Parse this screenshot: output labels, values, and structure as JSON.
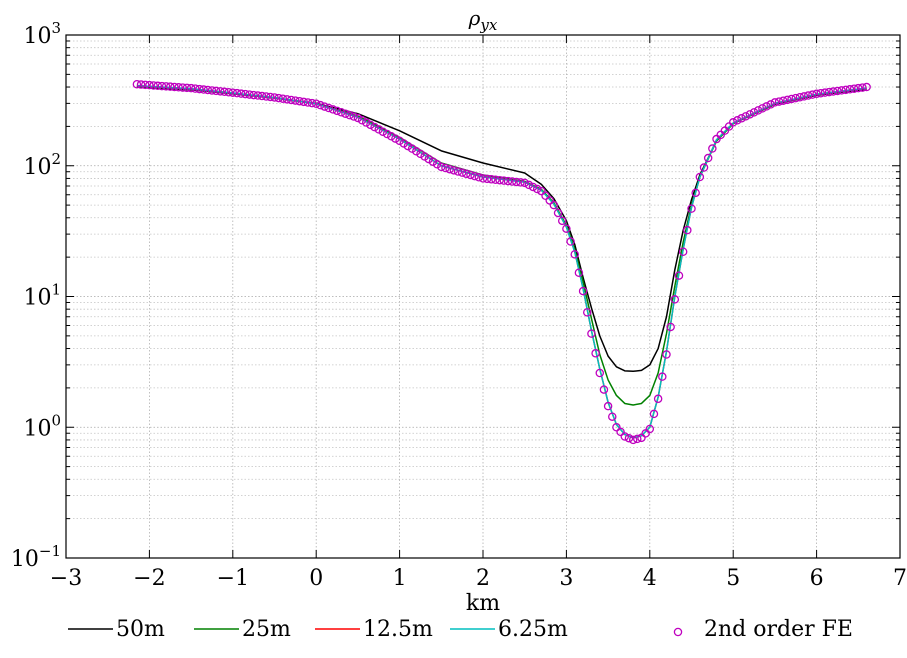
{
  "chart_data": {
    "type": "line",
    "title": "ρyx",
    "title_main": "ρ",
    "title_sub": "yx",
    "xlabel": "km",
    "ylabel": "",
    "xlim": [
      -3,
      7
    ],
    "ylim": [
      0.1,
      1000
    ],
    "yscale": "log",
    "grid": true,
    "legend_placement": "bottom",
    "x_ticks": [
      -3,
      -2,
      -1,
      0,
      1,
      2,
      3,
      4,
      5,
      6,
      7
    ],
    "x_tick_labels": [
      "−3",
      "−2",
      "−1",
      "0",
      "1",
      "2",
      "3",
      "4",
      "5",
      "6",
      "7"
    ],
    "y_ticks": [
      0.1,
      1,
      10,
      100,
      1000
    ],
    "y_tick_labels": [
      {
        "base": "10",
        "exp": "−1"
      },
      {
        "base": "10",
        "exp": "0"
      },
      {
        "base": "10",
        "exp": "1"
      },
      {
        "base": "10",
        "exp": "2"
      },
      {
        "base": "10",
        "exp": "3"
      }
    ],
    "x": [
      -2.15,
      -1.5,
      -1.0,
      -0.5,
      0.0,
      0.5,
      1.0,
      1.5,
      2.0,
      2.5,
      2.7,
      2.85,
      3.0,
      3.1,
      3.2,
      3.3,
      3.4,
      3.5,
      3.6,
      3.7,
      3.8,
      3.9,
      4.0,
      4.1,
      4.2,
      4.3,
      4.4,
      4.5,
      4.6,
      4.8,
      5.0,
      5.5,
      6.0,
      6.6
    ],
    "series": [
      {
        "name": "50m",
        "color": "#000000",
        "style": "line",
        "values": [
          400,
          380,
          355,
          330,
          300,
          250,
          185,
          130,
          105,
          88,
          72,
          56,
          38,
          25,
          14,
          8.2,
          5.0,
          3.5,
          2.9,
          2.7,
          2.68,
          2.72,
          3.0,
          4.0,
          7.0,
          16,
          32,
          55,
          85,
          155,
          210,
          295,
          345,
          385
        ]
      },
      {
        "name": "25m",
        "color": "#008000",
        "style": "line",
        "values": [
          405,
          385,
          357,
          330,
          298,
          240,
          165,
          105,
          85,
          76,
          66,
          52,
          35,
          23,
          13,
          6.8,
          3.6,
          2.3,
          1.75,
          1.52,
          1.48,
          1.52,
          1.75,
          2.6,
          5.2,
          12,
          26,
          50,
          82,
          155,
          210,
          298,
          350,
          390
        ]
      },
      {
        "name": "12.5m",
        "color": "#ff0000",
        "style": "line",
        "values": [
          410,
          388,
          360,
          332,
          298,
          235,
          160,
          100,
          82,
          75,
          65,
          51,
          34,
          22,
          11.5,
          5.5,
          2.8,
          1.55,
          1.05,
          0.88,
          0.83,
          0.86,
          1.0,
          1.7,
          3.8,
          10,
          23,
          48,
          82,
          158,
          212,
          300,
          352,
          392
        ]
      },
      {
        "name": "6.25m",
        "color": "#00bfbf",
        "style": "line",
        "values": [
          410,
          388,
          360,
          332,
          298,
          235,
          160,
          100,
          82,
          75,
          65,
          51,
          34,
          22,
          11.5,
          5.5,
          2.8,
          1.55,
          1.05,
          0.88,
          0.83,
          0.86,
          1.0,
          1.7,
          3.8,
          10,
          23,
          48,
          82,
          158,
          212,
          300,
          352,
          392
        ]
      },
      {
        "name": "2nd order FE",
        "color": "#bf00bf",
        "style": "markers",
        "values": [
          420,
          392,
          362,
          333,
          298,
          232,
          155,
          98,
          80,
          74,
          64,
          50,
          33,
          21,
          11,
          5.2,
          2.6,
          1.45,
          1.0,
          0.85,
          0.8,
          0.83,
          0.97,
          1.65,
          3.6,
          9.5,
          22,
          47,
          82,
          160,
          215,
          305,
          355,
          400
        ]
      }
    ]
  }
}
